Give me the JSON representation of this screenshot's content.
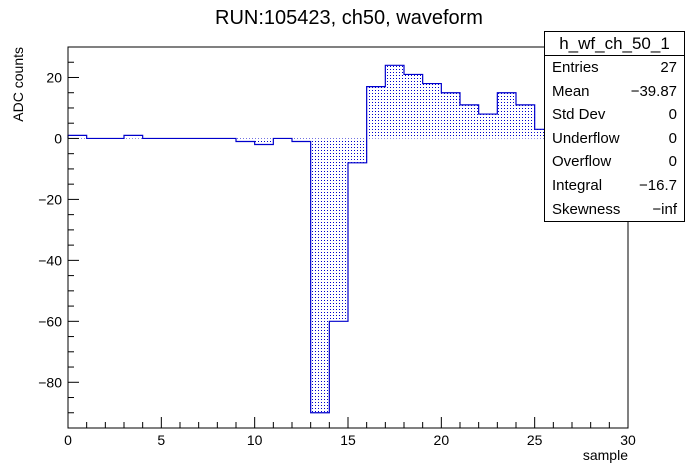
{
  "chart_data": {
    "type": "bar",
    "title": "RUN:105423, ch50, waveform",
    "xlabel": "sample",
    "ylabel": "ADC counts",
    "xlim": [
      0,
      30
    ],
    "ylim": [
      -95,
      30
    ],
    "x_ticks": [
      "0",
      "5",
      "10",
      "15",
      "20",
      "25",
      "30"
    ],
    "y_ticks": [
      "−80",
      "−60",
      "−40",
      "−20",
      "0",
      "20"
    ],
    "bin_width": 1,
    "x": [
      0,
      1,
      2,
      3,
      4,
      5,
      6,
      7,
      8,
      9,
      10,
      11,
      12,
      13,
      14,
      15,
      16,
      17,
      18,
      19,
      20,
      21,
      22,
      23,
      24,
      25,
      26
    ],
    "values": [
      1,
      0,
      0,
      1,
      0,
      0,
      0,
      0,
      0,
      -1,
      -2,
      0,
      -1,
      -90,
      -60,
      -8,
      17,
      24,
      21,
      18,
      15,
      11,
      8,
      15,
      11,
      3,
      2
    ],
    "colors": {
      "fill": "#0000cc",
      "line": "#0000cc"
    }
  },
  "stats": {
    "title": "h_wf_ch_50_1",
    "rows": [
      {
        "key": "Entries",
        "value": "27"
      },
      {
        "key": "Mean",
        "value": "−39.87"
      },
      {
        "key": "Std Dev",
        "value": "0"
      },
      {
        "key": "Underflow",
        "value": "0"
      },
      {
        "key": "Overflow",
        "value": "0"
      },
      {
        "key": "Integral",
        "value": "−16.7"
      },
      {
        "key": "Skewness",
        "value": "−inf"
      }
    ]
  }
}
